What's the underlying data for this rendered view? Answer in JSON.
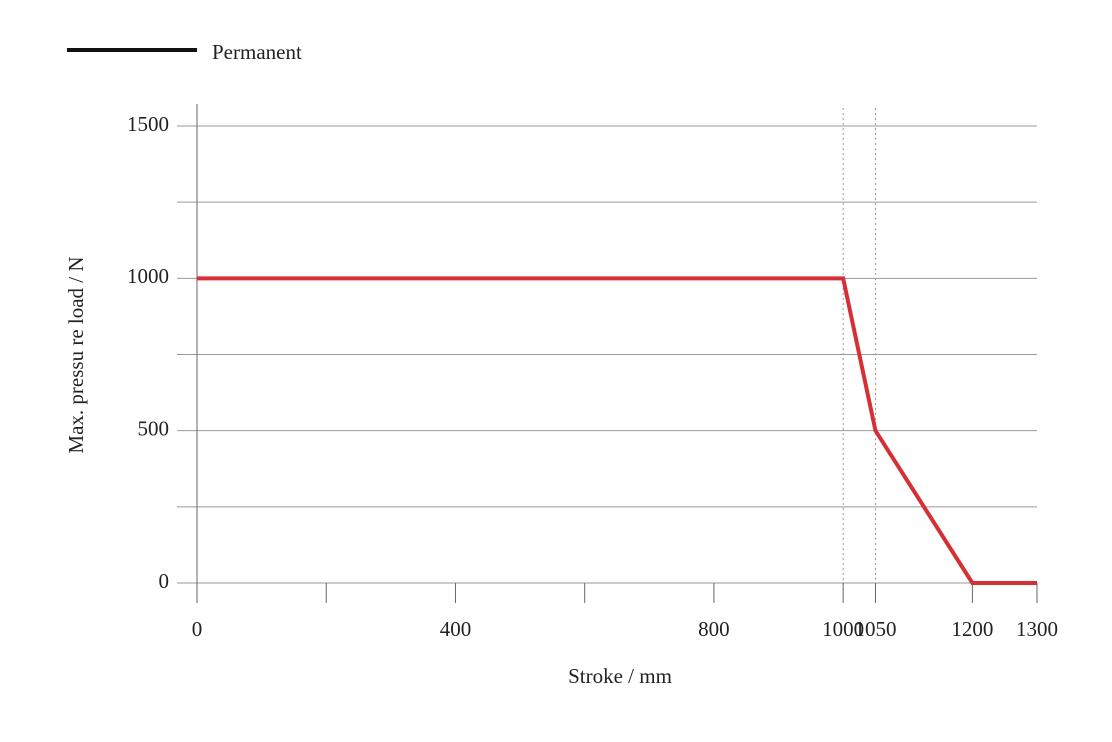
{
  "chart_data": {
    "type": "line",
    "x_label": "Stroke / mm",
    "y_label": "Max. pressu re load / N",
    "series": [
      {
        "name": "Permanent",
        "color": "#d62f36",
        "legend_color": "#111111",
        "x": [
          0,
          1000,
          1050,
          1200,
          1300
        ],
        "values": [
          1000,
          1000,
          500,
          0,
          0
        ]
      }
    ],
    "xlim": [
      0,
      1300
    ],
    "xticks": [
      0,
      400,
      800,
      1000,
      1050,
      1200,
      1300
    ],
    "x_minor_ticks": [
      200,
      600
    ],
    "ylim": [
      0,
      1500
    ],
    "yticks": [
      0,
      500,
      1000,
      1500
    ],
    "y_minor_grid": [
      250,
      750,
      1250
    ],
    "x_reference_lines": [
      1000,
      1050
    ],
    "grid": true,
    "legend": "top-left"
  }
}
